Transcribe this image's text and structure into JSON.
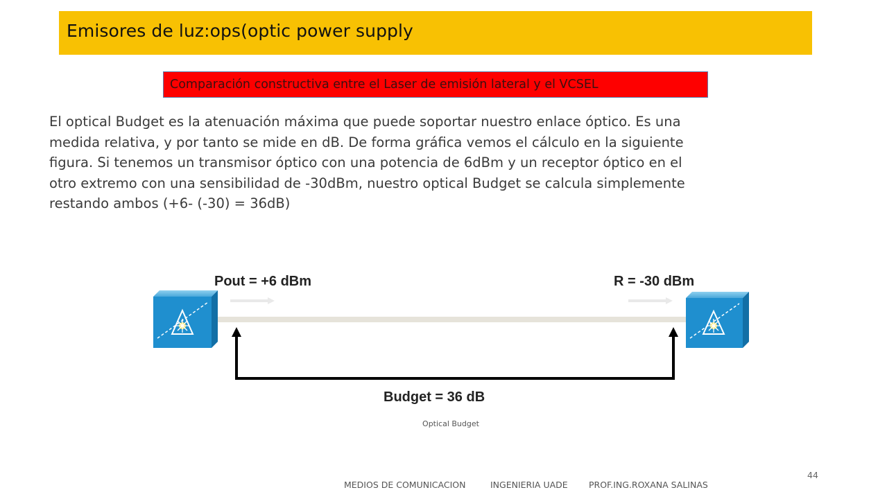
{
  "slide": {
    "title": "Emisores de luz:ops(optic power supply",
    "subtitle": "Comparación constructiva entre el Laser de emisión lateral y el VCSEL",
    "body": "El optical Budget es la atenuación máxima que puede soportar nuestro enlace óptico. Es una medida relativa, y por tanto se mide en dB. De forma gráfica vemos el cálculo en la siguiente figura. Si tenemos un transmisor óptico con una potencia de 6dBm y un receptor óptico en el otro extremo con una sensibilidad de -30dBm, nuestro optical Budget se calcula simplemente restando ambos (+6- (-30) = 36dB)",
    "page_number": "44"
  },
  "diagram": {
    "transmitter_label": "Pout = +6 dBm",
    "receiver_label": "R = -30 dBm",
    "budget_label": "Budget = 36 dB",
    "caption": "Optical Budget",
    "transmitter_icon": "optical-transmitter-icon",
    "receiver_icon": "optical-receiver-icon"
  },
  "footer": {
    "course": "MEDIOS DE COMUNICACION",
    "institution": "INGENIERIA  UADE",
    "professor": "PROF.ING.ROXANA SALINAS"
  },
  "colors": {
    "title_bar": "#f8c103",
    "subtitle_box": "#fe0000",
    "device": "#1f8fcf"
  }
}
